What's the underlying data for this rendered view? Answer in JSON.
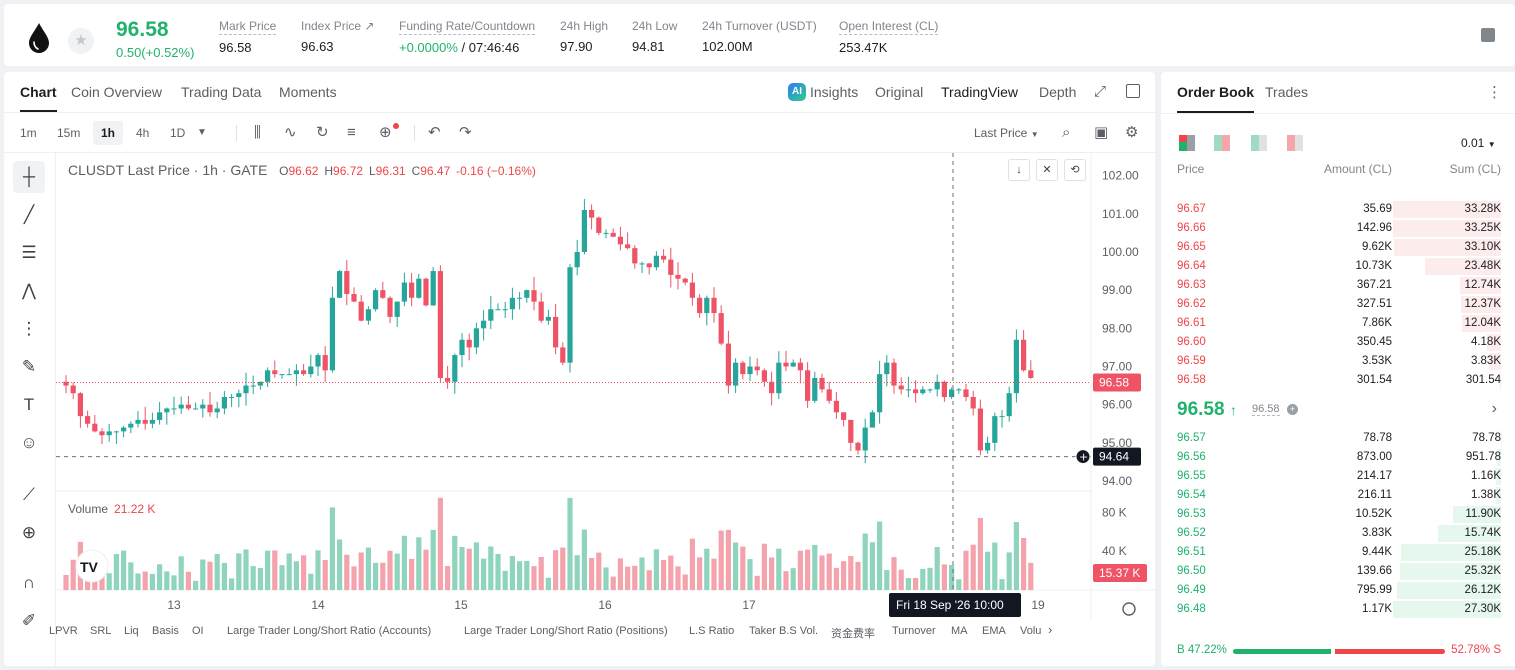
{
  "header": {
    "last_price": "96.58",
    "change": "0.50(+0.52%)",
    "stats": [
      {
        "label": "Mark Price",
        "value": "96.58"
      },
      {
        "label": "Index Price ↗",
        "value": "96.63"
      },
      {
        "label": "Funding Rate/Countdown",
        "value_green": "+0.0000%",
        "value_rest": " / 07:46:46"
      },
      {
        "label": "24h High",
        "value": "97.90"
      },
      {
        "label": "24h Low",
        "value": "94.81"
      },
      {
        "label": "24h Turnover (USDT)",
        "value": "102.00M"
      },
      {
        "label": "Open Interest (CL)",
        "value": "253.47K"
      }
    ],
    "fav_icon": "★"
  },
  "chart_tabs": [
    "Chart",
    "Coin Overview",
    "Trading Data",
    "Moments"
  ],
  "view_tabs": {
    "ai_badge": "AI",
    "insights": "Insights",
    "original": "Original",
    "tradingview": "TradingView",
    "depth": "Depth"
  },
  "toolbar": {
    "intervals": [
      "1m",
      "15m",
      "1h",
      "4h",
      "1D"
    ],
    "active_interval": "1h",
    "price_type": "Last Price"
  },
  "legend": {
    "symbol": "CLUSDT Last Price · 1h · GATE",
    "o_label": "O",
    "o": "96.62",
    "h_label": "H",
    "h": "96.72",
    "l_label": "L",
    "l": "96.31",
    "c_label": "C",
    "c": "96.47",
    "chg": "-0.16 (−0.16%)"
  },
  "volume": {
    "label": "Volume",
    "value": "21.22 K"
  },
  "chart_data": {
    "type": "candlestick",
    "price_axis_ticks": [
      "102.00",
      "101.00",
      "100.00",
      "99.00",
      "98.00",
      "97.00",
      "96.00",
      "95.00",
      "94.00"
    ],
    "volume_axis_ticks": [
      "80 K",
      "40 K"
    ],
    "x_ticks": [
      "13",
      "14",
      "15",
      "16",
      "17",
      "19"
    ],
    "crosshair_time": "Fri 18 Sep '26   10:00",
    "crosshair_price": "94.64",
    "last_price_tag": "96.58",
    "last_volume_tag": "15.37 K",
    "ylim": [
      94.0,
      102.2
    ],
    "vol_ylim": [
      0,
      100
    ],
    "colors": {
      "up": "#26a69a",
      "down": "#ef5366",
      "up_vol": "#8fd5bd",
      "down_vol": "#f4a3ad"
    },
    "closes": [
      96.5,
      96.3,
      95.7,
      95.5,
      95.3,
      95.2,
      95.3,
      95.3,
      95.4,
      95.5,
      95.6,
      95.5,
      95.6,
      95.8,
      95.9,
      95.9,
      96.0,
      95.9,
      95.9,
      96.0,
      95.8,
      95.9,
      96.2,
      96.2,
      96.3,
      96.5,
      96.5,
      96.6,
      96.9,
      96.8,
      96.8,
      96.8,
      96.9,
      96.8,
      97.0,
      97.3,
      96.9,
      98.8,
      99.5,
      98.9,
      98.7,
      98.2,
      98.5,
      99.0,
      98.8,
      98.3,
      98.7,
      99.2,
      98.8,
      99.3,
      98.6,
      99.5,
      96.7,
      96.6,
      97.3,
      97.7,
      97.5,
      98.0,
      98.2,
      98.5,
      98.5,
      98.5,
      98.8,
      98.8,
      99.0,
      98.7,
      98.2,
      98.3,
      97.5,
      97.1,
      99.6,
      100.0,
      101.1,
      100.9,
      100.5,
      100.5,
      100.4,
      100.2,
      100.1,
      99.7,
      99.7,
      99.6,
      99.9,
      99.8,
      99.4,
      99.3,
      99.2,
      98.8,
      98.4,
      98.8,
      98.4,
      97.6,
      96.5,
      97.1,
      96.8,
      97.0,
      96.9,
      96.6,
      96.3,
      97.1,
      97.0,
      97.1,
      96.9,
      96.1,
      96.7,
      96.4,
      96.1,
      95.8,
      95.6,
      95.0,
      94.8,
      95.4,
      95.8,
      96.8,
      97.1,
      96.5,
      96.4,
      96.4,
      96.3,
      96.4,
      96.4,
      96.6,
      96.2,
      96.4,
      96.4,
      96.2,
      95.9,
      94.8,
      95.0,
      95.7,
      95.7,
      96.3,
      97.7,
      96.9,
      96.7
    ]
  },
  "indicators": [
    "LPVR",
    "SRL",
    "Liq",
    "Basis",
    "OI",
    "Large Trader Long/Short Ratio (Accounts)",
    "Large Trader Long/Short Ratio (Positions)",
    "L.S Ratio",
    "Taker B.S Vol.",
    "资金费率",
    "Turnover",
    "MA",
    "EMA",
    "Volu"
  ],
  "orderbook": {
    "tabs": [
      "Order Book",
      "Trades"
    ],
    "precision": "0.01",
    "columns": [
      "Price",
      "Amount (CL)",
      "Sum (CL)"
    ],
    "asks": [
      {
        "price": "96.67",
        "amount": "35.69",
        "sum": "33.28K",
        "depth": 1.0
      },
      {
        "price": "96.66",
        "amount": "142.96",
        "sum": "33.25K",
        "depth": 0.999
      },
      {
        "price": "96.65",
        "amount": "9.62K",
        "sum": "33.10K",
        "depth": 0.995
      },
      {
        "price": "96.64",
        "amount": "10.73K",
        "sum": "23.48K",
        "depth": 0.705
      },
      {
        "price": "96.63",
        "amount": "367.21",
        "sum": "12.74K",
        "depth": 0.383
      },
      {
        "price": "96.62",
        "amount": "327.51",
        "sum": "12.37K",
        "depth": 0.372
      },
      {
        "price": "96.61",
        "amount": "7.86K",
        "sum": "12.04K",
        "depth": 0.362
      },
      {
        "price": "96.60",
        "amount": "350.45",
        "sum": "4.18K",
        "depth": 0.126
      },
      {
        "price": "96.59",
        "amount": "3.53K",
        "sum": "3.83K",
        "depth": 0.115
      },
      {
        "price": "96.58",
        "amount": "301.54",
        "sum": "301.54",
        "depth": 0.009
      }
    ],
    "mid": {
      "price": "96.58",
      "arrow": "↑",
      "mark": "96.58"
    },
    "bids": [
      {
        "price": "96.57",
        "amount": "78.78",
        "sum": "78.78",
        "depth": 0.003
      },
      {
        "price": "96.56",
        "amount": "873.00",
        "sum": "951.78",
        "depth": 0.035
      },
      {
        "price": "96.55",
        "amount": "214.17",
        "sum": "1.16K",
        "depth": 0.043
      },
      {
        "price": "96.54",
        "amount": "216.11",
        "sum": "1.38K",
        "depth": 0.051
      },
      {
        "price": "96.53",
        "amount": "10.52K",
        "sum": "11.90K",
        "depth": 0.44
      },
      {
        "price": "96.52",
        "amount": "3.83K",
        "sum": "15.74K",
        "depth": 0.582
      },
      {
        "price": "96.51",
        "amount": "9.44K",
        "sum": "25.18K",
        "depth": 0.93
      },
      {
        "price": "96.50",
        "amount": "139.66",
        "sum": "25.32K",
        "depth": 0.936
      },
      {
        "price": "96.49",
        "amount": "795.99",
        "sum": "26.12K",
        "depth": 0.965
      },
      {
        "price": "96.48",
        "amount": "1.17K",
        "sum": "27.30K",
        "depth": 1.0
      }
    ],
    "buy_ratio": "B 47.22%",
    "sell_ratio": "52.78% S",
    "buy_fraction": 0.4722
  }
}
